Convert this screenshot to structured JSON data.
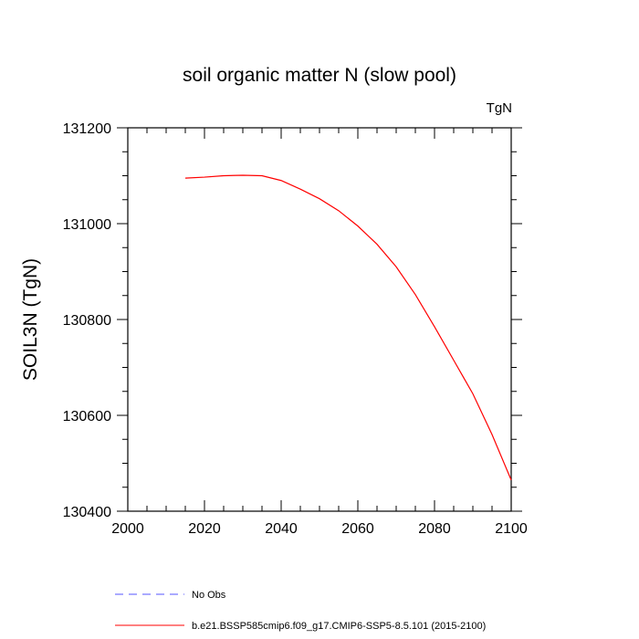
{
  "chart_data": {
    "type": "line",
    "title": "soil organic matter N (slow pool)",
    "units_label": "TgN",
    "xlabel": "",
    "ylabel": "SOIL3N  (TgN)",
    "xlim": [
      2000,
      2100
    ],
    "ylim": [
      130400,
      131200
    ],
    "x_ticks": [
      2000,
      2020,
      2040,
      2060,
      2080,
      2100
    ],
    "y_ticks": [
      130400,
      130600,
      130800,
      131000,
      131200
    ],
    "grid": false,
    "legend_position": "bottom",
    "series": [
      {
        "name": "No Obs",
        "color": "#5555ff",
        "style": "dashed",
        "x": [],
        "y": []
      },
      {
        "name": "b.e21.BSSP585cmip6.f09_g17.CMIP6-SSP5-8.5.101 (2015-2100)",
        "color": "#ff0000",
        "style": "solid",
        "x": [
          2015,
          2020,
          2025,
          2030,
          2035,
          2040,
          2045,
          2050,
          2055,
          2060,
          2065,
          2070,
          2075,
          2080,
          2085,
          2090,
          2095,
          2100
        ],
        "y": [
          131095,
          131097,
          131100,
          131101,
          131100,
          131090,
          131072,
          131052,
          131027,
          130995,
          130957,
          130910,
          130852,
          130785,
          130715,
          130645,
          130560,
          130465
        ]
      }
    ]
  }
}
